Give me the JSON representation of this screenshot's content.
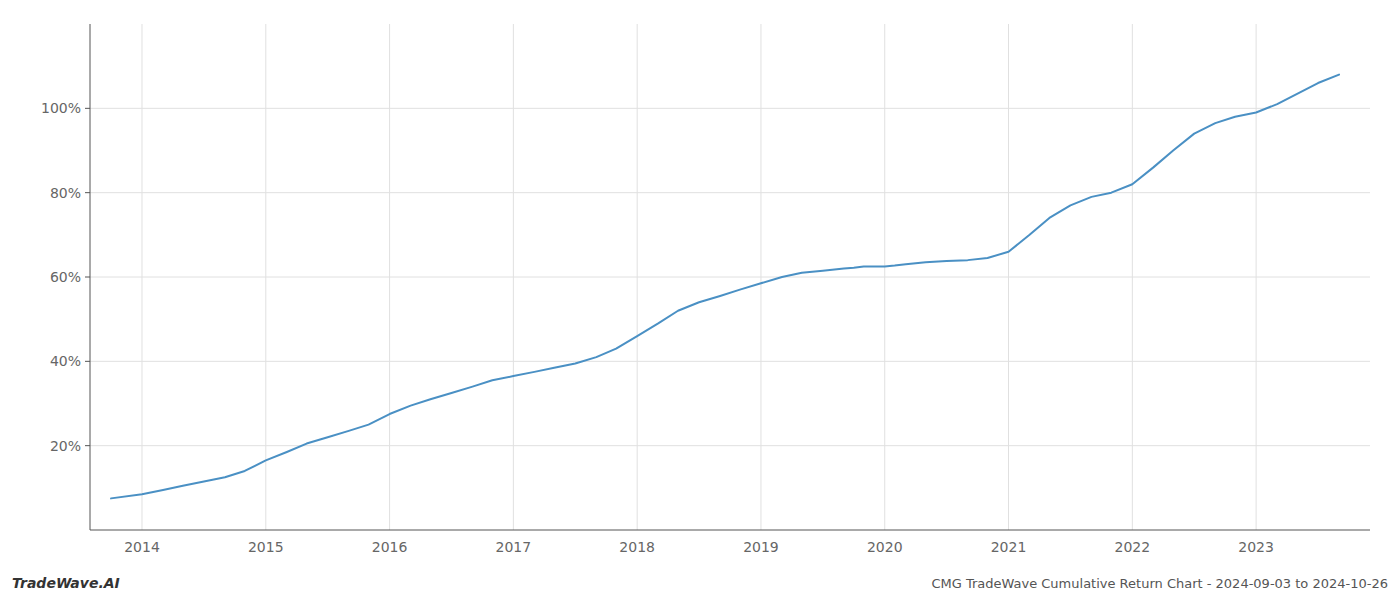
{
  "chart_data": {
    "type": "line",
    "title": "CMG TradeWave Cumulative Return Chart - 2024-09-03 to 2024-10-26",
    "annotations": [
      "TradeWave.AI"
    ],
    "x": [
      2013.75,
      2014.0,
      2014.17,
      2014.33,
      2014.5,
      2014.67,
      2014.83,
      2015.0,
      2015.17,
      2015.33,
      2015.5,
      2015.67,
      2015.83,
      2016.0,
      2016.17,
      2016.33,
      2016.5,
      2016.67,
      2016.83,
      2017.0,
      2017.17,
      2017.33,
      2017.5,
      2017.67,
      2017.83,
      2018.0,
      2018.17,
      2018.33,
      2018.5,
      2018.67,
      2018.83,
      2019.0,
      2019.17,
      2019.33,
      2019.5,
      2019.67,
      2019.75,
      2019.83,
      2020.0,
      2020.08,
      2020.17,
      2020.33,
      2020.5,
      2020.67,
      2020.83,
      2021.0,
      2021.17,
      2021.33,
      2021.5,
      2021.67,
      2021.83,
      2022.0,
      2022.17,
      2022.33,
      2022.5,
      2022.67,
      2022.83,
      2023.0,
      2023.17,
      2023.5,
      2023.67
    ],
    "values": [
      7.5,
      8.5,
      9.5,
      10.5,
      11.5,
      12.5,
      14.0,
      16.5,
      18.5,
      20.5,
      22.0,
      23.5,
      25.0,
      27.5,
      29.5,
      31.0,
      32.5,
      34.0,
      35.5,
      36.5,
      37.5,
      38.5,
      39.5,
      41.0,
      43.0,
      46.0,
      49.0,
      52.0,
      54.0,
      55.5,
      57.0,
      58.5,
      60.0,
      61.0,
      61.5,
      62.0,
      62.2,
      62.5,
      62.5,
      62.7,
      63.0,
      63.5,
      63.8,
      64.0,
      64.5,
      66.0,
      70.0,
      74.0,
      77.0,
      79.0,
      80.0,
      82.0,
      86.0,
      90.0,
      94.0,
      96.5,
      98.0,
      99.0,
      101.0,
      106.0,
      108.0
    ],
    "color": "#4a90c4",
    "xlim": [
      2013.58,
      2023.92
    ],
    "xticks": [
      2014,
      2015,
      2016,
      2017,
      2018,
      2019,
      2020,
      2021,
      2022,
      2023
    ],
    "ylim": [
      0,
      120
    ],
    "yticks": [
      {
        "value": 20,
        "label": "20%"
      },
      {
        "value": 40,
        "label": "40%"
      },
      {
        "value": 60,
        "label": "60%"
      },
      {
        "value": 80,
        "label": "80%"
      },
      {
        "value": 100,
        "label": "100%"
      }
    ],
    "grid": true
  }
}
